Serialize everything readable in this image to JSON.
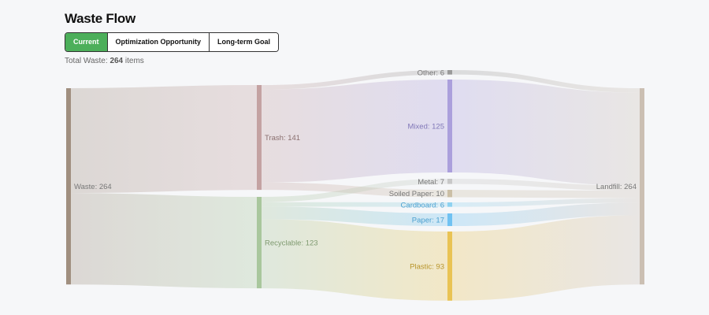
{
  "title": "Waste Flow",
  "tabs": [
    {
      "label": "Current",
      "active": true
    },
    {
      "label": "Optimization Opportunity",
      "active": false
    },
    {
      "label": "Long-term Goal",
      "active": false
    }
  ],
  "total": {
    "prefix": "Total Waste:",
    "value": "264",
    "suffix": "items"
  },
  "chart_data": {
    "type": "sankey",
    "nodes": [
      {
        "id": "waste",
        "name": "Waste",
        "value": 264,
        "color": "#a08f80",
        "label": "Waste: 264"
      },
      {
        "id": "trash",
        "name": "Trash",
        "value": 141,
        "color": "#c4a2a2",
        "label": "Trash: 141"
      },
      {
        "id": "recyclable",
        "name": "Recyclable",
        "value": 123,
        "color": "#a9c79d",
        "label": "Recyclable: 123"
      },
      {
        "id": "other",
        "name": "Other",
        "value": 6,
        "color": "#9a9a9a",
        "label": "Other: 6"
      },
      {
        "id": "mixed",
        "name": "Mixed",
        "value": 125,
        "color": "#ab9fdc",
        "label": "Mixed: 125"
      },
      {
        "id": "metal",
        "name": "Metal",
        "value": 7,
        "color": "#c8c8c8",
        "label": "Metal: 7"
      },
      {
        "id": "soiled",
        "name": "Soiled Paper",
        "value": 10,
        "color": "#cbbfa6",
        "label": "Soiled Paper: 10"
      },
      {
        "id": "cardboard",
        "name": "Cardboard",
        "value": 6,
        "color": "#8ed2f0",
        "label": "Cardboard: 6"
      },
      {
        "id": "paper",
        "name": "Paper",
        "value": 17,
        "color": "#70c2f2",
        "label": "Paper: 17"
      },
      {
        "id": "plastic",
        "name": "Plastic",
        "value": 93,
        "color": "#e9c354",
        "label": "Plastic: 93"
      },
      {
        "id": "landfill",
        "name": "Landfill",
        "value": 264,
        "color": "#cbbfb3",
        "label": "Landfill: 264"
      }
    ],
    "links": [
      {
        "source": "waste",
        "target": "trash",
        "value": 141
      },
      {
        "source": "waste",
        "target": "recyclable",
        "value": 123
      },
      {
        "source": "trash",
        "target": "other",
        "value": 6
      },
      {
        "source": "trash",
        "target": "mixed",
        "value": 125
      },
      {
        "source": "trash",
        "target": "soiled",
        "value": 10
      },
      {
        "source": "recyclable",
        "target": "metal",
        "value": 7
      },
      {
        "source": "recyclable",
        "target": "cardboard",
        "value": 6
      },
      {
        "source": "recyclable",
        "target": "paper",
        "value": 17
      },
      {
        "source": "recyclable",
        "target": "plastic",
        "value": 93
      },
      {
        "source": "other",
        "target": "landfill",
        "value": 6
      },
      {
        "source": "mixed",
        "target": "landfill",
        "value": 125
      },
      {
        "source": "metal",
        "target": "landfill",
        "value": 7
      },
      {
        "source": "soiled",
        "target": "landfill",
        "value": 10
      },
      {
        "source": "cardboard",
        "target": "landfill",
        "value": 6
      },
      {
        "source": "paper",
        "target": "landfill",
        "value": 17
      },
      {
        "source": "plastic",
        "target": "landfill",
        "value": 93
      }
    ]
  }
}
